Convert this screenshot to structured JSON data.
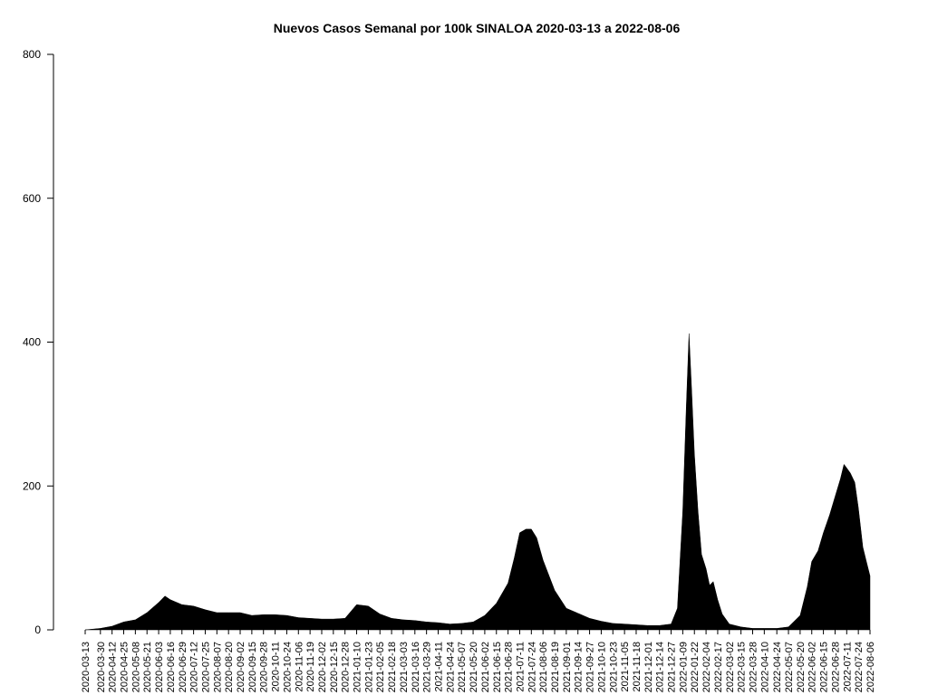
{
  "chart_data": {
    "type": "area",
    "title": "Nuevos Casos Semanal por 100k SINALOA 2020-03-13 a 2022-08-06",
    "xlabel": "",
    "ylabel": "",
    "ylim": [
      0,
      800
    ],
    "y_ticks": [
      "0",
      "200",
      "400",
      "600",
      "800"
    ],
    "x_start": "2020-03-13",
    "x_end": "2022-08-06",
    "x_ticks": [
      "2020-03-13",
      "2020-03-30",
      "2020-04-12",
      "2020-04-25",
      "2020-05-08",
      "2020-05-21",
      "2020-06-03",
      "2020-06-16",
      "2020-06-29",
      "2020-07-12",
      "2020-07-25",
      "2020-08-07",
      "2020-08-20",
      "2020-09-02",
      "2020-09-15",
      "2020-09-28",
      "2020-10-11",
      "2020-10-24",
      "2020-11-06",
      "2020-11-19",
      "2020-12-02",
      "2020-12-15",
      "2020-12-28",
      "2021-01-10",
      "2021-01-23",
      "2021-02-05",
      "2021-02-18",
      "2021-03-03",
      "2021-03-16",
      "2021-03-29",
      "2021-04-11",
      "2021-04-24",
      "2021-05-07",
      "2021-05-20",
      "2021-06-02",
      "2021-06-15",
      "2021-06-28",
      "2021-07-11",
      "2021-07-24",
      "2021-08-06",
      "2021-08-19",
      "2021-09-01",
      "2021-09-14",
      "2021-09-27",
      "2021-10-10",
      "2021-10-23",
      "2021-11-05",
      "2021-11-18",
      "2021-12-01",
      "2021-12-14",
      "2021-12-27",
      "2022-01-09",
      "2022-01-22",
      "2022-02-04",
      "2022-02-17",
      "2022-03-02",
      "2022-03-15",
      "2022-03-28",
      "2022-04-10",
      "2022-04-24",
      "2022-05-07",
      "2022-05-20",
      "2022-06-02",
      "2022-06-15",
      "2022-06-28",
      "2022-07-11",
      "2022-07-24",
      "2022-08-06"
    ],
    "series": [
      {
        "x": [
          "2020-03-13",
          "2020-03-30",
          "2020-04-12",
          "2020-04-25",
          "2020-05-08",
          "2020-05-21",
          "2020-06-03",
          "2020-06-10",
          "2020-06-16",
          "2020-06-29",
          "2020-07-12",
          "2020-07-25",
          "2020-08-07",
          "2020-08-20",
          "2020-09-02",
          "2020-09-15",
          "2020-09-28",
          "2020-10-11",
          "2020-10-24",
          "2020-11-06",
          "2020-11-19",
          "2020-12-02",
          "2020-12-15",
          "2020-12-28",
          "2021-01-10",
          "2021-01-23",
          "2021-02-05",
          "2021-02-18",
          "2021-03-03",
          "2021-03-16",
          "2021-03-29",
          "2021-04-11",
          "2021-04-24",
          "2021-05-07",
          "2021-05-20",
          "2021-06-02",
          "2021-06-15",
          "2021-06-28",
          "2021-07-05",
          "2021-07-11",
          "2021-07-18",
          "2021-07-24",
          "2021-07-30",
          "2021-08-06",
          "2021-08-19",
          "2021-09-01",
          "2021-09-14",
          "2021-09-27",
          "2021-10-10",
          "2021-10-23",
          "2021-11-05",
          "2021-11-18",
          "2021-12-01",
          "2021-12-14",
          "2021-12-27",
          "2022-01-03",
          "2022-01-09",
          "2022-01-13",
          "2022-01-16",
          "2022-01-19",
          "2022-01-22",
          "2022-01-26",
          "2022-01-30",
          "2022-02-04",
          "2022-02-08",
          "2022-02-12",
          "2022-02-17",
          "2022-02-22",
          "2022-03-02",
          "2022-03-15",
          "2022-03-28",
          "2022-04-10",
          "2022-04-24",
          "2022-05-07",
          "2022-05-20",
          "2022-05-28",
          "2022-06-02",
          "2022-06-09",
          "2022-06-15",
          "2022-06-22",
          "2022-06-28",
          "2022-07-04",
          "2022-07-08",
          "2022-07-11",
          "2022-07-15",
          "2022-07-20",
          "2022-07-24",
          "2022-07-29",
          "2022-08-02",
          "2022-08-06"
        ],
        "values": [
          0,
          2,
          5,
          11,
          14,
          24,
          38,
          47,
          42,
          35,
          33,
          28,
          24,
          24,
          24,
          20,
          21,
          21,
          20,
          17,
          16,
          15,
          15,
          16,
          35,
          33,
          22,
          16,
          14,
          13,
          11,
          10,
          8,
          9,
          11,
          20,
          37,
          65,
          100,
          135,
          140,
          140,
          128,
          97,
          55,
          30,
          23,
          16,
          12,
          9,
          8,
          7,
          6,
          6,
          8,
          30,
          165,
          310,
          412,
          330,
          245,
          165,
          105,
          85,
          62,
          67,
          42,
          22,
          8,
          4,
          2,
          2,
          2,
          4,
          20,
          60,
          95,
          110,
          135,
          160,
          185,
          210,
          230,
          225,
          218,
          205,
          170,
          115,
          95,
          75
        ]
      }
    ]
  }
}
